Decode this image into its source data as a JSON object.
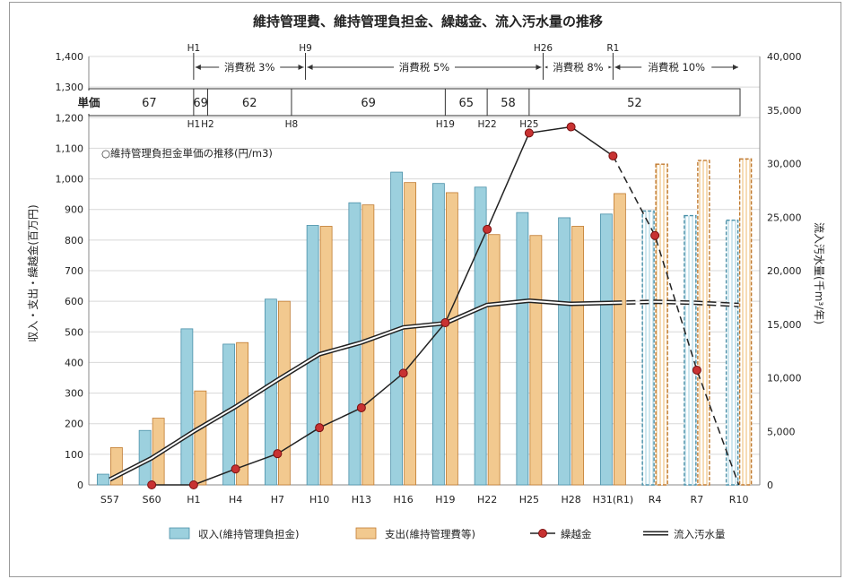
{
  "chart_data": {
    "type": "bar",
    "title": "維持管理費、維持管理負担金、繰越金、流入汚水量の推移",
    "ylabel": "収入・支出・繰越金(百万円)",
    "y2label": "流入汚水量(千m³/年)",
    "ylim": [
      0,
      1400
    ],
    "y2lim": [
      0,
      40000
    ],
    "yticks": [
      "0",
      "100",
      "200",
      "300",
      "400",
      "500",
      "600",
      "700",
      "800",
      "900",
      "1,000",
      "1,100",
      "1,200",
      "1,300",
      "1,400"
    ],
    "y2ticks": [
      "0",
      "5,000",
      "10,000",
      "15,000",
      "20,000",
      "25,000",
      "30,000",
      "35,000",
      "40,000"
    ],
    "grid": true,
    "legend_position": "bottom",
    "categories": [
      "S57",
      "S60",
      "H1",
      "H4",
      "H7",
      "H10",
      "H13",
      "H16",
      "H19",
      "H22",
      "H25",
      "H28",
      "H31(R1)",
      "R4",
      "R7",
      "R10"
    ],
    "projected_from_index": 13,
    "series": [
      {
        "name": "収入(維持管理負担金)",
        "kind": "bar",
        "color": "#9cd0de",
        "edge": "#4a90a8",
        "values": [
          35,
          178,
          510,
          460,
          607,
          848,
          922,
          1022,
          985,
          973,
          890,
          873,
          885,
          895,
          880,
          865
        ]
      },
      {
        "name": "支出(維持管理費等)",
        "kind": "bar",
        "color": "#f2c98f",
        "edge": "#c07a30",
        "values": [
          122,
          218,
          307,
          465,
          600,
          845,
          915,
          988,
          955,
          818,
          815,
          845,
          952,
          1048,
          1060,
          1065
        ]
      },
      {
        "name": "繰越金",
        "kind": "line",
        "axis": "left",
        "color": "#222222",
        "marker": "#c83232",
        "values": [
          null,
          0,
          0,
          52,
          102,
          187,
          252,
          365,
          530,
          835,
          1150,
          1170,
          1075,
          815,
          375,
          0
        ]
      },
      {
        "name": "流入汚水量",
        "kind": "double-line",
        "axis": "right",
        "color": "#222222",
        "values": [
          500,
          2500,
          5000,
          7300,
          9800,
          12200,
          13300,
          14700,
          15100,
          16800,
          17200,
          16900,
          17000,
          17100,
          17000,
          16800
        ]
      }
    ],
    "annotations": {
      "unit_price_label": "単価",
      "unit_price_note": "○維持管理負担金単価の推移(円/m3)",
      "unit_price_segments": [
        {
          "value": "67",
          "start": "",
          "end": "H1"
        },
        {
          "value": "69",
          "start": "H1",
          "end": "H2"
        },
        {
          "value": "62",
          "start": "H2",
          "end": "H8"
        },
        {
          "value": "69",
          "start": "H8",
          "end": "H19"
        },
        {
          "value": "65",
          "start": "H19",
          "end": "H22"
        },
        {
          "value": "58",
          "start": "H22",
          "end": "H25"
        },
        {
          "value": "52",
          "start": "H25",
          "end": ""
        }
      ],
      "tax_periods": [
        {
          "label": "消費税 3%",
          "start": "H1",
          "end": "H9"
        },
        {
          "label": "消費税 5%",
          "start": "H9",
          "end": "H26"
        },
        {
          "label": "消費税 8%",
          "start": "H26",
          "end": "R1"
        },
        {
          "label": "消費税 10%",
          "start": "R1",
          "end": ""
        }
      ]
    }
  }
}
